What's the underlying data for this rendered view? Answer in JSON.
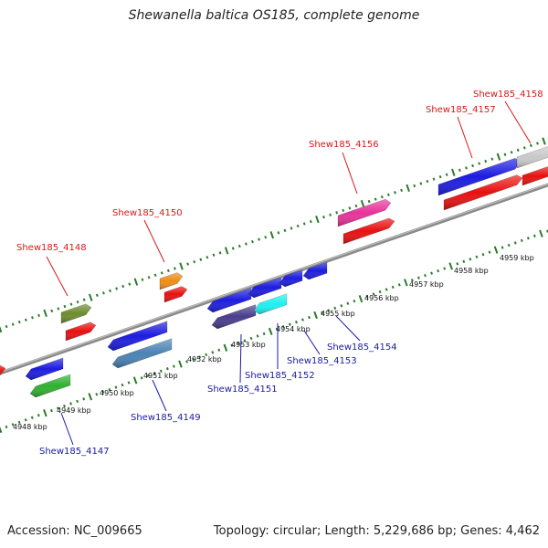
{
  "title": "Shewanella baltica OS185, complete genome",
  "footer": {
    "accession": "Accession: NC_009665",
    "topology": "Topology: circular; Length: 5,229,686 bp; Genes: 4,462"
  },
  "scale_labels": [
    "4948 kbp",
    "4949 kbp",
    "4950 kbp",
    "4951 kbp",
    "4952 kbp",
    "4953 kbp",
    "4954 kbp",
    "4955 kbp",
    "4956 kbp",
    "4957 kbp",
    "4958 kbp",
    "4959 kbp"
  ],
  "colors": {
    "forward_label": "#d81818",
    "reverse_label": "#1a1aa8",
    "tick": "#2a7a2a",
    "backbone": "#777777"
  },
  "genes_forward": [
    {
      "label": "Shew185_4148",
      "color": "#6e8b2d"
    },
    {
      "label": "Shew185_4150",
      "color": "#f08c12"
    },
    {
      "label": "Shew185_4156",
      "color": "#e8329a"
    },
    {
      "label": "Shew185_4157",
      "color": "#1c1ce0"
    },
    {
      "label": "Shew185_4158",
      "color": "#c8c8c8"
    }
  ],
  "genes_reverse": [
    {
      "label": "Shew185_4147",
      "color": "#2fb02f"
    },
    {
      "label": "Shew185_4149",
      "color": "#4a82b4"
    },
    {
      "label": "Shew185_4151",
      "color": "#4a3c8c"
    },
    {
      "label": "Shew185_4152",
      "color": "#1ef0f0"
    },
    {
      "label": "Shew185_4153",
      "color": "#1c1ce0"
    },
    {
      "label": "Shew185_4154",
      "color": "#1c1ce0"
    }
  ]
}
